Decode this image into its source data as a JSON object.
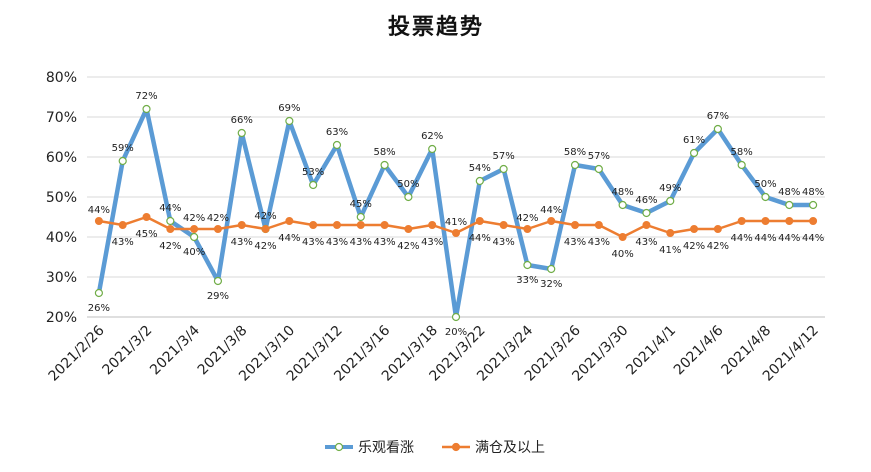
{
  "chart_data": {
    "type": "line",
    "title": "投票趋势",
    "xlabel": "",
    "ylabel": "",
    "ylim": [
      20,
      80
    ],
    "yticks": [
      "20%",
      "30%",
      "40%",
      "50%",
      "60%",
      "70%",
      "80%"
    ],
    "x_tick_labels": [
      "2021/2/26",
      "2021/3/2",
      "2021/3/4",
      "2021/3/8",
      "2021/3/10",
      "2021/3/12",
      "2021/3/16",
      "2021/3/18",
      "2021/3/22",
      "2021/3/24",
      "2021/3/26",
      "2021/3/30",
      "2021/4/1",
      "2021/4/6",
      "2021/4/8",
      "2021/4/12"
    ],
    "x_tick_every": 2,
    "grid": "horizontal",
    "legend_position": "bottom",
    "series": [
      {
        "name": "乐观看涨",
        "color": "#5b9bd5",
        "marker_fill": "#ffffff",
        "marker_stroke": "#70ad47",
        "values": [
          26,
          59,
          72,
          44,
          40,
          29,
          66,
          42,
          69,
          53,
          63,
          45,
          58,
          50,
          62,
          20,
          54,
          57,
          33,
          32,
          58,
          57,
          48,
          46,
          49,
          61,
          67,
          58,
          50,
          48,
          48
        ]
      },
      {
        "name": "满仓及以上",
        "color": "#ed7d31",
        "marker_fill": "#ed7d31",
        "marker_stroke": "#ed7d31",
        "values": [
          44,
          43,
          45,
          42,
          42,
          42,
          43,
          42,
          44,
          43,
          43,
          43,
          43,
          42,
          43,
          41,
          44,
          43,
          42,
          44,
          43,
          43,
          40,
          43,
          41,
          42,
          42,
          44,
          44,
          44,
          44
        ]
      }
    ]
  }
}
